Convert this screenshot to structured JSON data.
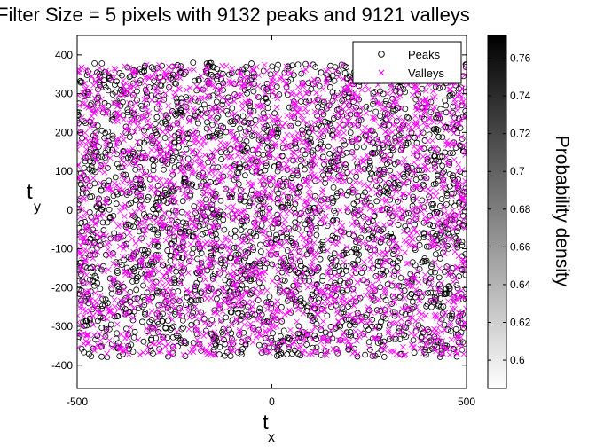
{
  "chart_data": {
    "type": "scatter",
    "title": "Filter Size = 5 pixels with 9132 peaks and 9121 valleys",
    "xlabel": {
      "main": "t",
      "sub": "x"
    },
    "ylabel": {
      "main": "t",
      "sub": "y"
    },
    "xlim": [
      -500,
      500
    ],
    "ylim": [
      -460,
      450
    ],
    "xticks": [
      -500,
      0,
      500
    ],
    "yticks": [
      400,
      300,
      200,
      100,
      0,
      -100,
      -200,
      -300,
      -400
    ],
    "grid": false,
    "legend_position": "top-right",
    "series": [
      {
        "name": "Peaks",
        "marker": "circle",
        "color": "#000000",
        "count": 9132,
        "x_range": [
          -500,
          500
        ],
        "y_range": [
          -380,
          380
        ]
      },
      {
        "name": "Valleys",
        "marker": "x",
        "color": "#ff00ff",
        "count": 9121,
        "x_range": [
          -500,
          500
        ],
        "y_range": [
          -375,
          375
        ]
      }
    ],
    "colorbar": {
      "label": "Probability density",
      "range": [
        0.585,
        0.772
      ],
      "ticks": [
        0.76,
        0.74,
        0.72,
        0.7,
        0.68,
        0.66,
        0.64,
        0.62,
        0.6
      ],
      "colormap": "gray-reversed"
    }
  }
}
